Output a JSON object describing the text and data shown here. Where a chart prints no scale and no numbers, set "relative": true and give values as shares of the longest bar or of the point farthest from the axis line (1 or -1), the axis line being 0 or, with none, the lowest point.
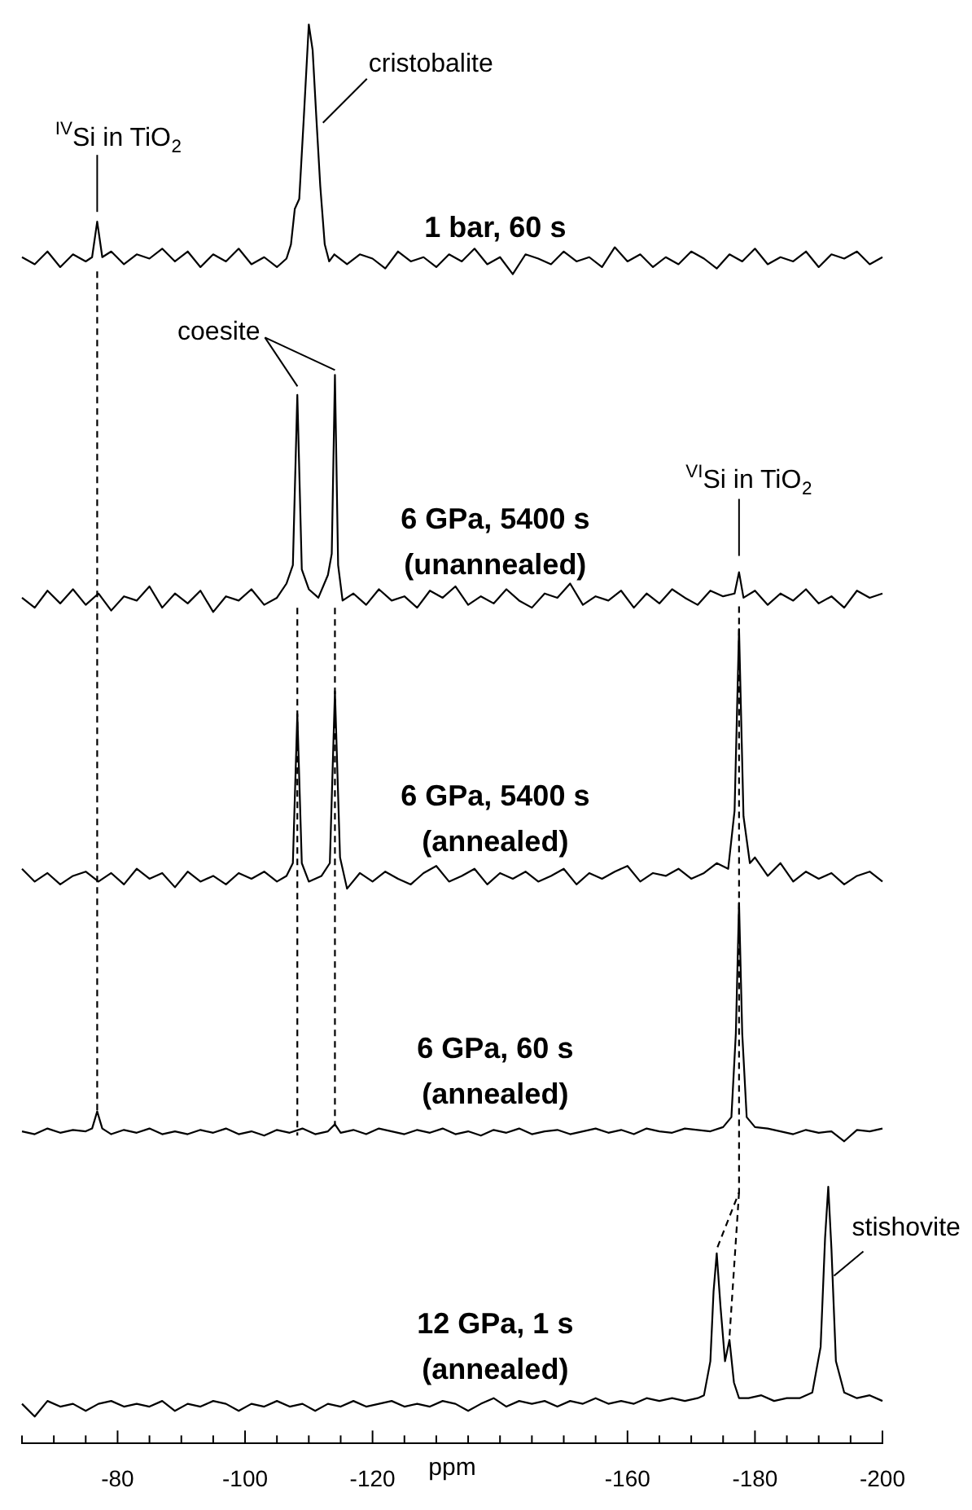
{
  "chart_data": {
    "type": "line",
    "relative": true,
    "xlabel": "ppm",
    "xlim": [
      -65,
      -200
    ],
    "legend": false,
    "xticks": [
      {
        "value": -65,
        "label": null
      },
      {
        "value": -70,
        "label": null
      },
      {
        "value": -75,
        "label": null
      },
      -80,
      {
        "value": -85,
        "label": null
      },
      {
        "value": -90,
        "label": null
      },
      {
        "value": -95,
        "label": null
      },
      -100,
      {
        "value": -105,
        "label": null
      },
      {
        "value": -110,
        "label": null
      },
      {
        "value": -115,
        "label": null
      },
      -120,
      {
        "value": -125,
        "label": null
      },
      {
        "value": -130,
        "label": null
      },
      {
        "value": -135,
        "label": null
      },
      {
        "value": -140,
        "label": null
      },
      {
        "value": -145,
        "label": null
      },
      {
        "value": -150,
        "label": null
      },
      {
        "value": -155,
        "label": null
      },
      -160,
      {
        "value": -165,
        "label": null
      },
      {
        "value": -170,
        "label": null
      },
      {
        "value": -175,
        "label": null
      },
      -180,
      {
        "value": -185,
        "label": null
      },
      {
        "value": -190,
        "label": null
      },
      {
        "value": -195,
        "label": null
      },
      -200
    ],
    "series": [
      {
        "name": "1 bar, 60 s",
        "color": "#000000",
        "x": [
          -65,
          -67,
          -69,
          -71,
          -73,
          -75,
          -76,
          -76.8,
          -77.6,
          -79,
          -81,
          -83,
          -85,
          -87,
          -89,
          -91,
          -93,
          -95,
          -97,
          -99,
          -101,
          -103,
          -105,
          -106.5,
          -107.2,
          -107.8,
          -108.5,
          -109.2,
          -110,
          -110.6,
          -111.2,
          -111.8,
          -112.5,
          -113.2,
          -114,
          -116,
          -118,
          -120,
          -122,
          -124,
          -126,
          -128,
          -130,
          -132,
          -134,
          -136,
          -138,
          -140,
          -142,
          -144,
          -146,
          -148,
          -150,
          -152,
          -154,
          -156,
          -158,
          -160,
          -162,
          -164,
          -166,
          -168,
          -170,
          -172,
          -174,
          -176,
          -178,
          -180,
          -182,
          -184,
          -186,
          -188,
          -190,
          -192,
          -194,
          -196,
          -198,
          -200
        ],
        "values": [
          0.836,
          0.831,
          0.84,
          0.829,
          0.838,
          0.833,
          0.836,
          0.861,
          0.836,
          0.84,
          0.831,
          0.838,
          0.835,
          0.842,
          0.833,
          0.84,
          0.829,
          0.838,
          0.833,
          0.842,
          0.831,
          0.836,
          0.829,
          0.835,
          0.845,
          0.87,
          0.877,
          0.933,
          1,
          0.982,
          0.933,
          0.886,
          0.845,
          0.833,
          0.838,
          0.831,
          0.838,
          0.835,
          0.828,
          0.84,
          0.833,
          0.836,
          0.829,
          0.838,
          0.833,
          0.842,
          0.831,
          0.836,
          0.824,
          0.838,
          0.835,
          0.831,
          0.84,
          0.833,
          0.836,
          0.829,
          0.843,
          0.833,
          0.838,
          0.829,
          0.836,
          0.831,
          0.84,
          0.835,
          0.828,
          0.838,
          0.833,
          0.842,
          0.831,
          0.836,
          0.833,
          0.84,
          0.829,
          0.838,
          0.835,
          0.84,
          0.831,
          0.836
        ]
      },
      {
        "name": "6 GPa, 5400 s\n(unannealed)",
        "color": "#000000",
        "x": [
          -65,
          -67,
          -69,
          -71,
          -73,
          -75,
          -77,
          -79,
          -81,
          -83,
          -85,
          -87,
          -89,
          -91,
          -93,
          -95,
          -97,
          -99,
          -101,
          -103,
          -105,
          -106.5,
          -107.5,
          -108.2,
          -108.9,
          -110,
          -111.5,
          -113,
          -113.6,
          -114.1,
          -114.6,
          -115.3,
          -117,
          -119,
          -121,
          -123,
          -125,
          -127,
          -129,
          -131,
          -133,
          -135,
          -137,
          -139,
          -141,
          -143,
          -145,
          -147,
          -149,
          -151,
          -153,
          -155,
          -157,
          -159,
          -161,
          -163,
          -165,
          -167,
          -169,
          -171,
          -173,
          -175,
          -176.8,
          -177.5,
          -178.2,
          -180,
          -182,
          -184,
          -186,
          -188,
          -190,
          -192,
          -194,
          -196,
          -198,
          -200
        ],
        "values": [
          0.596,
          0.589,
          0.601,
          0.592,
          0.602,
          0.591,
          0.599,
          0.587,
          0.597,
          0.594,
          0.604,
          0.589,
          0.599,
          0.592,
          0.601,
          0.586,
          0.597,
          0.594,
          0.602,
          0.591,
          0.596,
          0.606,
          0.619,
          0.739,
          0.616,
          0.602,
          0.596,
          0.612,
          0.627,
          0.753,
          0.619,
          0.594,
          0.599,
          0.591,
          0.602,
          0.594,
          0.597,
          0.589,
          0.601,
          0.596,
          0.604,
          0.591,
          0.597,
          0.592,
          0.602,
          0.594,
          0.589,
          0.599,
          0.596,
          0.606,
          0.591,
          0.597,
          0.594,
          0.601,
          0.589,
          0.599,
          0.592,
          0.602,
          0.596,
          0.591,
          0.601,
          0.597,
          0.599,
          0.614,
          0.596,
          0.601,
          0.591,
          0.599,
          0.594,
          0.602,
          0.592,
          0.597,
          0.589,
          0.601,
          0.596,
          0.599
        ]
      },
      {
        "name": "6 GPa, 5400 s\n(annealed)",
        "color": "#000000",
        "x": [
          -65,
          -67,
          -69,
          -71,
          -73,
          -75,
          -77,
          -79,
          -81,
          -83,
          -85,
          -87,
          -89,
          -91,
          -93,
          -95,
          -97,
          -99,
          -101,
          -103,
          -105,
          -106.5,
          -107.5,
          -108.2,
          -108.9,
          -110,
          -112,
          -113.3,
          -114.1,
          -114.9,
          -116,
          -118,
          -120,
          -122,
          -124,
          -126,
          -128,
          -130,
          -132,
          -134,
          -136,
          -138,
          -140,
          -142,
          -144,
          -146,
          -148,
          -150,
          -152,
          -154,
          -156,
          -158,
          -160,
          -162,
          -164,
          -166,
          -168,
          -170,
          -172,
          -174,
          -175.8,
          -176.8,
          -177.5,
          -178.2,
          -179.2,
          -180,
          -182,
          -184,
          -186,
          -188,
          -190,
          -192,
          -194,
          -196,
          -198,
          -200
        ],
        "values": [
          0.405,
          0.396,
          0.402,
          0.394,
          0.4,
          0.403,
          0.396,
          0.402,
          0.394,
          0.405,
          0.398,
          0.402,
          0.392,
          0.403,
          0.396,
          0.4,
          0.394,
          0.402,
          0.398,
          0.403,
          0.396,
          0.4,
          0.409,
          0.514,
          0.409,
          0.396,
          0.4,
          0.409,
          0.53,
          0.413,
          0.391,
          0.402,
          0.396,
          0.403,
          0.398,
          0.394,
          0.402,
          0.407,
          0.396,
          0.4,
          0.405,
          0.394,
          0.402,
          0.398,
          0.403,
          0.396,
          0.4,
          0.405,
          0.394,
          0.402,
          0.398,
          0.403,
          0.407,
          0.396,
          0.402,
          0.4,
          0.405,
          0.398,
          0.402,
          0.409,
          0.405,
          0.446,
          0.574,
          0.442,
          0.409,
          0.413,
          0.4,
          0.409,
          0.396,
          0.403,
          0.398,
          0.402,
          0.394,
          0.4,
          0.403,
          0.396
        ]
      },
      {
        "name": "6 GPa, 60 s\n(annealed)",
        "color": "#000000",
        "x": [
          -65,
          -67,
          -69,
          -71,
          -73,
          -75,
          -76,
          -76.8,
          -77.6,
          -79,
          -81,
          -83,
          -85,
          -87,
          -89,
          -91,
          -93,
          -95,
          -97,
          -99,
          -101,
          -103,
          -105,
          -107,
          -109,
          -111,
          -113,
          -114.1,
          -115,
          -117,
          -119,
          -121,
          -123,
          -125,
          -127,
          -129,
          -131,
          -133,
          -135,
          -137,
          -139,
          -141,
          -143,
          -145,
          -147,
          -149,
          -151,
          -153,
          -155,
          -157,
          -159,
          -161,
          -163,
          -165,
          -167,
          -169,
          -171,
          -173,
          -175,
          -176.3,
          -177,
          -177.5,
          -178,
          -178.7,
          -180,
          -182,
          -184,
          -186,
          -188,
          -190,
          -192,
          -194,
          -196,
          -198,
          -200
        ],
        "values": [
          0.22,
          0.218,
          0.222,
          0.219,
          0.221,
          0.22,
          0.222,
          0.234,
          0.222,
          0.218,
          0.221,
          0.219,
          0.222,
          0.218,
          0.22,
          0.218,
          0.221,
          0.219,
          0.222,
          0.218,
          0.22,
          0.217,
          0.221,
          0.219,
          0.222,
          0.218,
          0.22,
          0.225,
          0.219,
          0.221,
          0.218,
          0.222,
          0.22,
          0.218,
          0.221,
          0.219,
          0.222,
          0.218,
          0.22,
          0.217,
          0.221,
          0.219,
          0.222,
          0.218,
          0.22,
          0.221,
          0.218,
          0.22,
          0.222,
          0.219,
          0.221,
          0.218,
          0.222,
          0.22,
          0.219,
          0.222,
          0.221,
          0.22,
          0.223,
          0.23,
          0.289,
          0.381,
          0.289,
          0.23,
          0.223,
          0.222,
          0.22,
          0.218,
          0.221,
          0.219,
          0.22,
          0.213,
          0.221,
          0.22,
          0.222
        ]
      },
      {
        "name": "12 GPa, 1 s\n(annealed)",
        "color": "#000000",
        "x": [
          -65,
          -67,
          -69,
          -71,
          -73,
          -75,
          -77,
          -79,
          -81,
          -83,
          -85,
          -87,
          -89,
          -91,
          -93,
          -95,
          -97,
          -99,
          -101,
          -103,
          -105,
          -107,
          -109,
          -111,
          -113,
          -115,
          -117,
          -119,
          -121,
          -123,
          -125,
          -127,
          -129,
          -131,
          -133,
          -135,
          -137,
          -139,
          -141,
          -143,
          -145,
          -147,
          -149,
          -151,
          -153,
          -155,
          -157,
          -159,
          -161,
          -163,
          -165,
          -167,
          -169,
          -171,
          -172,
          -173,
          -173.5,
          -174,
          -174.6,
          -175.3,
          -176,
          -176.7,
          -177.5,
          -179,
          -181,
          -183,
          -185,
          -187,
          -189,
          -190.3,
          -191,
          -191.5,
          -192,
          -192.7,
          -194,
          -196,
          -198,
          -200
        ],
        "values": [
          0.028,
          0.019,
          0.03,
          0.026,
          0.028,
          0.023,
          0.028,
          0.03,
          0.026,
          0.028,
          0.026,
          0.03,
          0.023,
          0.028,
          0.026,
          0.03,
          0.028,
          0.023,
          0.028,
          0.026,
          0.03,
          0.026,
          0.028,
          0.023,
          0.028,
          0.026,
          0.03,
          0.026,
          0.028,
          0.03,
          0.026,
          0.028,
          0.026,
          0.03,
          0.028,
          0.023,
          0.028,
          0.032,
          0.026,
          0.03,
          0.028,
          0.03,
          0.026,
          0.03,
          0.028,
          0.032,
          0.028,
          0.03,
          0.028,
          0.032,
          0.03,
          0.032,
          0.03,
          0.032,
          0.034,
          0.058,
          0.107,
          0.134,
          0.096,
          0.058,
          0.073,
          0.043,
          0.032,
          0.032,
          0.034,
          0.03,
          0.032,
          0.032,
          0.036,
          0.068,
          0.145,
          0.181,
          0.137,
          0.058,
          0.036,
          0.032,
          0.034,
          0.03
        ]
      },
      {
        "color": "#000000",
        "line_style": "dashed",
        "x": [
          -76.8,
          -76.8
        ],
        "values": [
          0.826,
          0.234
        ]
      },
      {
        "color": "#000000",
        "line_style": "dashed",
        "x": [
          -108.2,
          -108.2
        ],
        "values": [
          0.589,
          0.217
        ]
      },
      {
        "color": "#000000",
        "line_style": "dashed",
        "x": [
          -114.1,
          -114.1
        ],
        "values": [
          0.589,
          0.225
        ]
      },
      {
        "color": "#000000",
        "line_style": "dashed",
        "x": [
          -177.5,
          -177.5,
          -174
        ],
        "values": [
          0.59,
          0.177,
          0.137
        ]
      },
      {
        "color": "#000000",
        "line_style": "dashed",
        "x": [
          -177.5,
          -176
        ],
        "values": [
          0.177,
          0.075
        ]
      }
    ],
    "annotations": [
      {
        "text": "$^{IV}$Si in TiO$_{2}$",
        "x": -76.8,
        "y": 0.861
      },
      {
        "text": "cristobalite",
        "x": -111.2,
        "y": 0.933
      },
      {
        "text": "coesite",
        "x": -114.1,
        "y": 0.753
      },
      {
        "text": "$^{VI}$Si in TiO$_{2}$",
        "x": -177.5,
        "y": 0.614
      },
      {
        "text": "stishovite",
        "x": -192.4,
        "y": 0.117
      }
    ]
  }
}
